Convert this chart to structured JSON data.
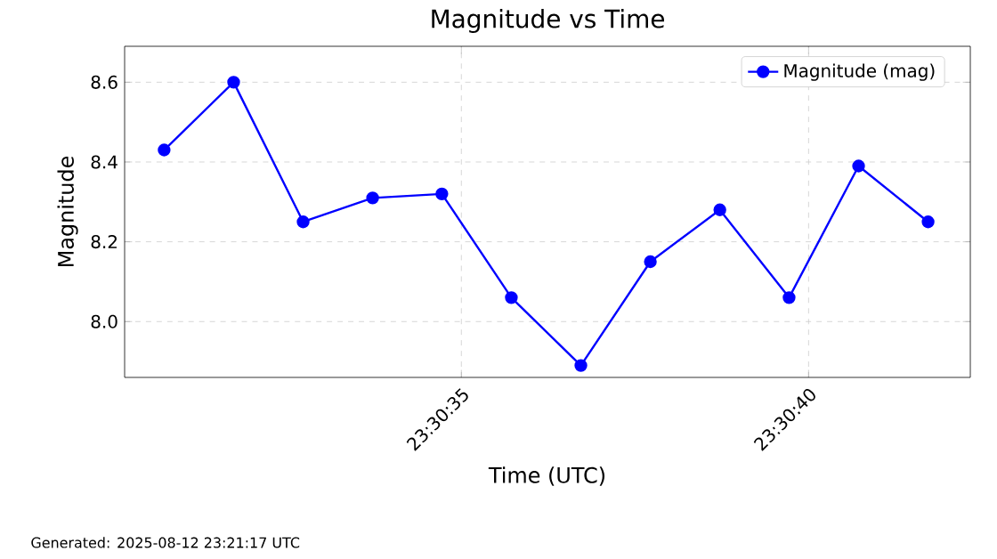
{
  "chart_data": {
    "type": "line",
    "title": "Magnitude vs Time",
    "xlabel": "Time (UTC)",
    "ylabel": "Magnitude",
    "annotations": [
      "Generated: 2025-08-12 23:21:17 UTC"
    ],
    "x": [
      23.508533,
      23.508811,
      23.509089,
      23.509367,
      23.509644,
      23.509922,
      23.5102,
      23.510478,
      23.510756,
      23.511033,
      23.511311,
      23.511589
    ],
    "series": [
      {
        "name": "Magnitude (mag)",
        "color": "#0000ff",
        "values": [
          8.43,
          8.6,
          8.25,
          8.31,
          8.32,
          8.06,
          7.89,
          8.15,
          8.28,
          8.06,
          8.39,
          8.25
        ]
      }
    ],
    "xlim": [
      23.508375,
      23.511758
    ],
    "ylim": [
      7.86,
      8.69
    ],
    "xticks": [
      {
        "value": 23.509722,
        "label": "23:30:35"
      },
      {
        "value": 23.511111,
        "label": "23:30:40"
      }
    ],
    "yticks": [
      {
        "value": 8.0,
        "label": "8.0"
      },
      {
        "value": 8.2,
        "label": "8.2"
      },
      {
        "value": 8.4,
        "label": "8.4"
      },
      {
        "value": 8.6,
        "label": "8.6"
      }
    ],
    "grid": true,
    "legend": "top right",
    "marker": "circle",
    "line_style": "solid"
  }
}
